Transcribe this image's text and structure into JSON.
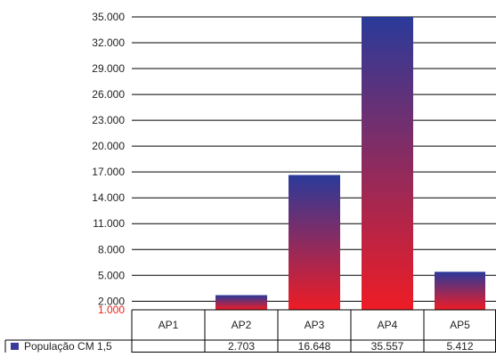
{
  "chart_data": {
    "type": "bar",
    "categories": [
      "AP1",
      "AP2",
      "AP3",
      "AP4",
      "AP5"
    ],
    "series": [
      {
        "name": "População CM 1,5",
        "values": [
          null,
          2703,
          16648,
          35557,
          5412
        ],
        "value_labels": [
          "",
          "2.703",
          "16.648",
          "35.557",
          "5.412"
        ]
      }
    ],
    "y_ticks": [
      1000,
      2000,
      5000,
      8000,
      11000,
      14000,
      17000,
      20000,
      23000,
      26000,
      29000,
      32000,
      35000
    ],
    "y_tick_labels": [
      "1.000",
      "2.000",
      "5.000",
      "8.000",
      "11.000",
      "14.000",
      "17.000",
      "20.000",
      "23.000",
      "26.000",
      "29.000",
      "32.000",
      "35.000"
    ],
    "ylim": [
      1000,
      35000
    ],
    "grid": true,
    "legend": "bottom-left, in data table",
    "data_table": true,
    "colors": {
      "bar_top": "#2a3a9a",
      "bar_bottom": "#ee1c25",
      "grid": "#000000",
      "axis_first_label": "#e8231c",
      "axis_label": "#222222",
      "legend_swatch": "#3a3a9a"
    },
    "title": "",
    "xlabel": "",
    "ylabel": ""
  }
}
